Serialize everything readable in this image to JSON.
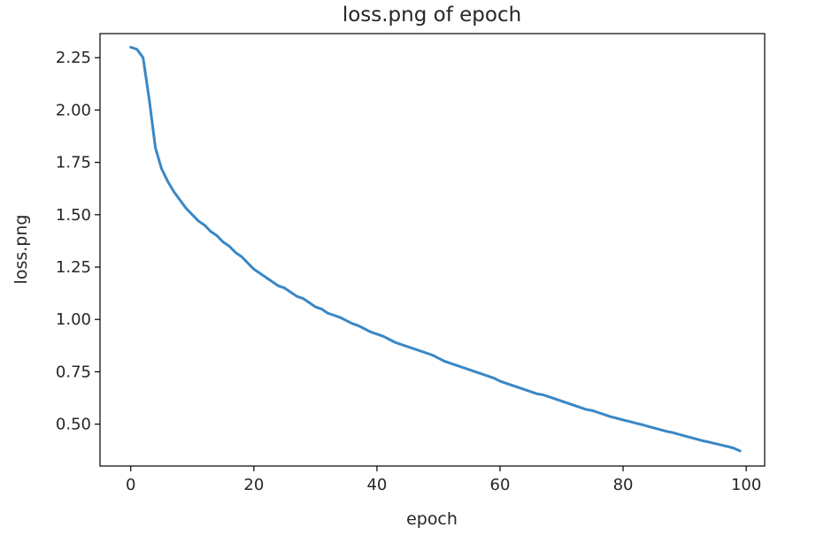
{
  "chart_data": {
    "type": "line",
    "title": "loss.png of epoch",
    "xlabel": "epoch",
    "ylabel": "loss.png",
    "xlim": [
      -5,
      103
    ],
    "ylim": [
      0.3,
      2.365
    ],
    "grid": false,
    "line_color": "#3a87c5",
    "xticks": [
      {
        "value": 0,
        "label": "0"
      },
      {
        "value": 20,
        "label": "20"
      },
      {
        "value": 40,
        "label": "40"
      },
      {
        "value": 60,
        "label": "60"
      },
      {
        "value": 80,
        "label": "80"
      },
      {
        "value": 100,
        "label": "100"
      }
    ],
    "yticks": [
      {
        "value": 0.5,
        "label": "0.50"
      },
      {
        "value": 0.75,
        "label": "0.75"
      },
      {
        "value": 1.0,
        "label": "1.00"
      },
      {
        "value": 1.25,
        "label": "1.25"
      },
      {
        "value": 1.5,
        "label": "1.50"
      },
      {
        "value": 1.75,
        "label": "1.75"
      },
      {
        "value": 2.0,
        "label": "2.00"
      },
      {
        "value": 2.25,
        "label": "2.25"
      }
    ],
    "series": [
      {
        "x": [
          0,
          1,
          2,
          3,
          4,
          5,
          6,
          7,
          8,
          9,
          10,
          11,
          12,
          13,
          14,
          15,
          16,
          17,
          18,
          19,
          20,
          21,
          22,
          23,
          24,
          25,
          26,
          27,
          28,
          29,
          30,
          31,
          32,
          33,
          34,
          35,
          36,
          37,
          38,
          39,
          40,
          41,
          42,
          43,
          44,
          45,
          46,
          47,
          48,
          49,
          50,
          51,
          52,
          53,
          54,
          55,
          56,
          57,
          58,
          59,
          60,
          61,
          62,
          63,
          64,
          65,
          66,
          67,
          68,
          69,
          70,
          71,
          72,
          73,
          74,
          75,
          76,
          77,
          78,
          79,
          80,
          81,
          82,
          83,
          84,
          85,
          86,
          87,
          88,
          89,
          90,
          91,
          92,
          93,
          94,
          95,
          96,
          97,
          98,
          99
        ],
        "y": [
          2.3,
          2.29,
          2.25,
          2.05,
          1.82,
          1.72,
          1.66,
          1.61,
          1.57,
          1.53,
          1.5,
          1.47,
          1.45,
          1.42,
          1.4,
          1.37,
          1.35,
          1.32,
          1.3,
          1.27,
          1.24,
          1.22,
          1.2,
          1.18,
          1.16,
          1.15,
          1.13,
          1.11,
          1.1,
          1.08,
          1.06,
          1.05,
          1.03,
          1.02,
          1.01,
          0.995,
          0.98,
          0.97,
          0.955,
          0.94,
          0.93,
          0.92,
          0.905,
          0.89,
          0.88,
          0.87,
          0.86,
          0.85,
          0.84,
          0.83,
          0.815,
          0.8,
          0.79,
          0.78,
          0.77,
          0.76,
          0.75,
          0.74,
          0.73,
          0.72,
          0.705,
          0.695,
          0.685,
          0.675,
          0.665,
          0.655,
          0.645,
          0.64,
          0.63,
          0.62,
          0.61,
          0.6,
          0.59,
          0.58,
          0.57,
          0.565,
          0.555,
          0.545,
          0.535,
          0.528,
          0.52,
          0.513,
          0.505,
          0.498,
          0.49,
          0.482,
          0.474,
          0.466,
          0.46,
          0.452,
          0.444,
          0.436,
          0.428,
          0.42,
          0.414,
          0.407,
          0.4,
          0.393,
          0.385,
          0.372
        ]
      }
    ]
  }
}
